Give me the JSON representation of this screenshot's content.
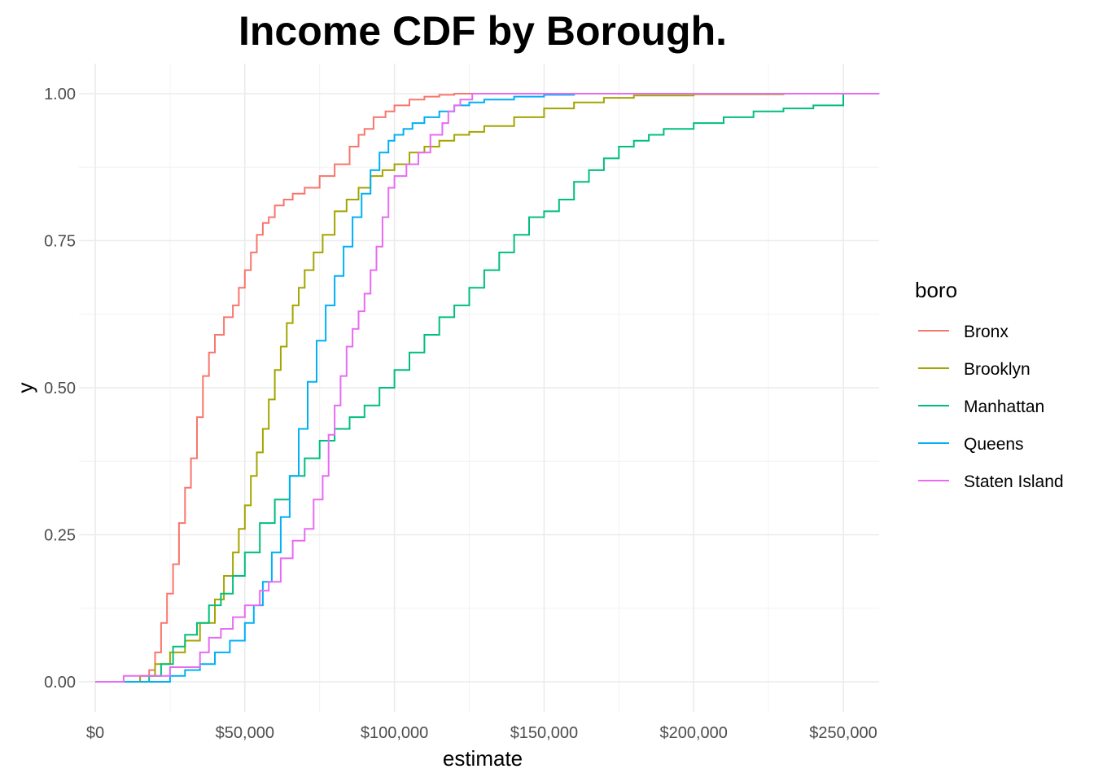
{
  "chart_data": {
    "type": "line",
    "subtype": "step-ecdf",
    "title": "Income CDF by Borough.",
    "xlabel": "estimate",
    "ylabel": "y",
    "xlim": [
      -3000,
      262000
    ],
    "ylim": [
      -0.05,
      1.05
    ],
    "x_ticks": [
      0,
      50000,
      100000,
      150000,
      200000,
      250000
    ],
    "x_tick_labels": [
      "$0",
      "$50,000",
      "$100,000",
      "$150,000",
      "$200,000",
      "$250,000"
    ],
    "x_minor_ticks": [
      25000,
      75000,
      125000,
      175000,
      225000
    ],
    "y_ticks": [
      0,
      0.25,
      0.5,
      0.75,
      1
    ],
    "y_tick_labels": [
      "0.00",
      "0.25",
      "0.50",
      "0.75",
      "1.00"
    ],
    "y_minor_ticks": [
      0.125,
      0.375,
      0.625,
      0.875
    ],
    "grid": true,
    "legend": {
      "title": "boro",
      "position": "right"
    },
    "series": [
      {
        "name": "Bronx",
        "color": "#F8766D",
        "x": [
          0,
          10000,
          15000,
          18000,
          20000,
          22000,
          24000,
          26000,
          28000,
          30000,
          32000,
          34000,
          36000,
          38000,
          40000,
          43000,
          46000,
          48000,
          50000,
          52000,
          54000,
          56000,
          58000,
          60000,
          63000,
          66000,
          70000,
          75000,
          80000,
          85000,
          88000,
          90000,
          93000,
          97000,
          100000,
          105000,
          110000,
          115000,
          120000,
          125000,
          262000
        ],
        "y": [
          0,
          0.0,
          0.01,
          0.02,
          0.05,
          0.1,
          0.15,
          0.2,
          0.27,
          0.33,
          0.38,
          0.45,
          0.52,
          0.56,
          0.59,
          0.62,
          0.64,
          0.67,
          0.7,
          0.73,
          0.76,
          0.78,
          0.79,
          0.81,
          0.82,
          0.83,
          0.84,
          0.86,
          0.88,
          0.91,
          0.93,
          0.94,
          0.96,
          0.97,
          0.98,
          0.99,
          0.995,
          0.998,
          1.0,
          1.0,
          1.0
        ]
      },
      {
        "name": "Brooklyn",
        "color": "#A3A500",
        "x": [
          0,
          10000,
          15000,
          20000,
          25000,
          30000,
          35000,
          40000,
          43000,
          46000,
          48000,
          50000,
          52000,
          54000,
          56000,
          58000,
          60000,
          62000,
          64000,
          66000,
          68000,
          70000,
          73000,
          76000,
          80000,
          84000,
          88000,
          92000,
          96000,
          100000,
          105000,
          110000,
          115000,
          120000,
          125000,
          130000,
          140000,
          150000,
          160000,
          170000,
          180000,
          200000,
          230000,
          262000
        ],
        "y": [
          0,
          0.0,
          0.01,
          0.03,
          0.05,
          0.07,
          0.1,
          0.14,
          0.18,
          0.22,
          0.26,
          0.3,
          0.35,
          0.39,
          0.43,
          0.48,
          0.53,
          0.57,
          0.61,
          0.64,
          0.67,
          0.7,
          0.73,
          0.76,
          0.8,
          0.82,
          0.84,
          0.86,
          0.87,
          0.88,
          0.9,
          0.91,
          0.92,
          0.93,
          0.935,
          0.945,
          0.96,
          0.975,
          0.985,
          0.993,
          0.997,
          0.999,
          1.0,
          1.0
        ]
      },
      {
        "name": "Manhattan",
        "color": "#00BF7D",
        "x": [
          0,
          10000,
          15000,
          18000,
          22000,
          26000,
          30000,
          34000,
          38000,
          42000,
          46000,
          50000,
          55000,
          60000,
          65000,
          70000,
          75000,
          80000,
          85000,
          90000,
          95000,
          100000,
          105000,
          110000,
          115000,
          120000,
          125000,
          130000,
          135000,
          140000,
          145000,
          150000,
          155000,
          160000,
          165000,
          170000,
          175000,
          180000,
          185000,
          190000,
          200000,
          210000,
          220000,
          230000,
          240000,
          250000,
          262000
        ],
        "y": [
          0,
          0.0,
          0.0,
          0.01,
          0.03,
          0.06,
          0.08,
          0.1,
          0.13,
          0.15,
          0.18,
          0.22,
          0.27,
          0.31,
          0.35,
          0.38,
          0.41,
          0.43,
          0.45,
          0.47,
          0.5,
          0.53,
          0.56,
          0.59,
          0.62,
          0.64,
          0.67,
          0.7,
          0.73,
          0.76,
          0.79,
          0.8,
          0.82,
          0.85,
          0.87,
          0.89,
          0.91,
          0.92,
          0.93,
          0.94,
          0.95,
          0.96,
          0.97,
          0.975,
          0.98,
          1.0,
          1.0
        ]
      },
      {
        "name": "Queens",
        "color": "#00B0F6",
        "x": [
          0,
          10000,
          20000,
          25000,
          30000,
          35000,
          40000,
          45000,
          50000,
          53000,
          56000,
          59000,
          62000,
          65000,
          68000,
          71000,
          74000,
          77000,
          80000,
          83000,
          86000,
          89000,
          92000,
          95000,
          98000,
          100000,
          103000,
          106000,
          110000,
          115000,
          120000,
          125000,
          130000,
          140000,
          150000,
          160000,
          262000
        ],
        "y": [
          0,
          0.0,
          0.0,
          0.01,
          0.02,
          0.03,
          0.05,
          0.07,
          0.1,
          0.13,
          0.17,
          0.22,
          0.28,
          0.35,
          0.43,
          0.51,
          0.58,
          0.64,
          0.69,
          0.74,
          0.79,
          0.83,
          0.87,
          0.9,
          0.92,
          0.93,
          0.94,
          0.95,
          0.96,
          0.97,
          0.98,
          0.985,
          0.99,
          0.995,
          0.998,
          1.0,
          1.0
        ]
      },
      {
        "name": "Staten Island",
        "color": "#E76BF3",
        "x": [
          0,
          9500,
          20000,
          25000,
          35000,
          38000,
          42000,
          46000,
          50000,
          55000,
          58000,
          62000,
          66000,
          70000,
          73000,
          76000,
          78000,
          80000,
          82000,
          84000,
          86000,
          88000,
          90000,
          92000,
          94000,
          96000,
          98000,
          100000,
          104000,
          108000,
          112000,
          116000,
          118000,
          120000,
          122000,
          126000,
          262000
        ],
        "y": [
          0,
          0.01,
          0.01,
          0.025,
          0.05,
          0.075,
          0.09,
          0.11,
          0.13,
          0.155,
          0.17,
          0.21,
          0.24,
          0.26,
          0.31,
          0.35,
          0.42,
          0.47,
          0.52,
          0.57,
          0.6,
          0.63,
          0.66,
          0.7,
          0.74,
          0.79,
          0.84,
          0.86,
          0.88,
          0.9,
          0.93,
          0.95,
          0.97,
          0.98,
          0.99,
          1.0,
          1.0
        ]
      }
    ]
  }
}
